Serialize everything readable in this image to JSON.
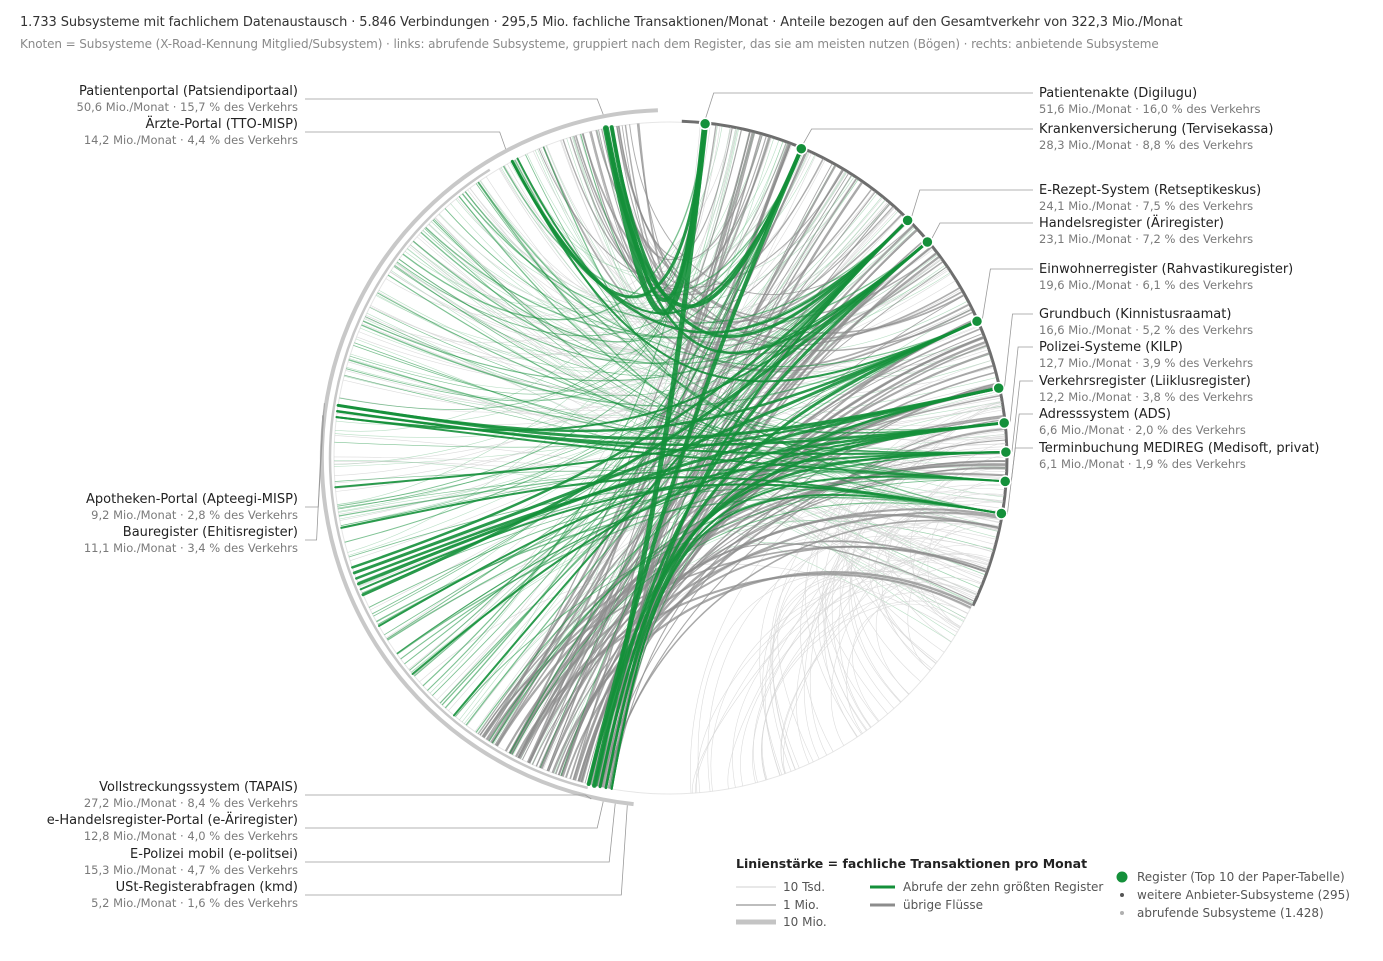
{
  "header": {
    "line1": "1.733 Subsysteme mit fachlichem Datenaustausch · 5.846 Verbindungen · 295,5 Mio. fachliche Transaktionen/Monat · Anteile bezogen auf den Gesamtverkehr von 322,3 Mio./Monat",
    "line2": "Knoten = Subsysteme (X-Road-Kennung Mitglied/Subsystem) · links: abrufende Subsysteme, gruppiert nach dem Register, das sie am meisten nutzen (Bögen) · rechts: anbietende Subsysteme"
  },
  "left_nodes": [
    {
      "name": "Patientenportal (Patsiendiportaal)",
      "value": "50,6 Mio./Monat · 15,7 % des Verkehrs"
    },
    {
      "name": "Ärzte-Portal (TTO-MISP)",
      "value": "14,2 Mio./Monat · 4,4 % des Verkehrs"
    },
    {
      "name": "Apotheken-Portal (Apteegi-MISP)",
      "value": "9,2 Mio./Monat · 2,8 % des Verkehrs"
    },
    {
      "name": "Bauregister (Ehitisregister)",
      "value": "11,1 Mio./Monat · 3,4 % des Verkehrs"
    },
    {
      "name": "Vollstreckungssystem (TAPAIS)",
      "value": "27,2 Mio./Monat · 8,4 % des Verkehrs"
    },
    {
      "name": "e-Handelsregister-Portal (e-Äriregister)",
      "value": "12,8 Mio./Monat · 4,0 % des Verkehrs"
    },
    {
      "name": "E-Polizei mobil (e-politsei)",
      "value": "15,3 Mio./Monat · 4,7 % des Verkehrs"
    },
    {
      "name": "USt-Registerabfragen (kmd)",
      "value": "5,2 Mio./Monat · 1,6 % des Verkehrs"
    }
  ],
  "right_nodes": [
    {
      "name": "Patientenakte (Digilugu)",
      "value": "51,6 Mio./Monat · 16,0 % des Verkehrs"
    },
    {
      "name": "Krankenversicherung (Tervisekassa)",
      "value": "28,3 Mio./Monat · 8,8 % des Verkehrs"
    },
    {
      "name": "E-Rezept-System (Retseptikeskus)",
      "value": "24,1 Mio./Monat · 7,5 % des Verkehrs"
    },
    {
      "name": "Handelsregister (Äriregister)",
      "value": "23,1 Mio./Monat · 7,2 % des Verkehrs"
    },
    {
      "name": "Einwohnerregister (Rahvastikuregister)",
      "value": "19,6 Mio./Monat · 6,1 % des Verkehrs"
    },
    {
      "name": "Grundbuch (Kinnistusraamat)",
      "value": "16,6 Mio./Monat · 5,2 % des Verkehrs"
    },
    {
      "name": "Polizei-Systeme (KILP)",
      "value": "12,7 Mio./Monat · 3,9 % des Verkehrs"
    },
    {
      "name": "Verkehrsregister (Liiklusregister)",
      "value": "12,2 Mio./Monat · 3,8 % des Verkehrs"
    },
    {
      "name": "Adresssystem (ADS)",
      "value": "6,6 Mio./Monat · 2,0 % des Verkehrs"
    },
    {
      "name": "Terminbuchung MEDIREG (Medisoft, privat)",
      "value": "6,1 Mio./Monat · 1,9 % des Verkehrs"
    }
  ],
  "legend": {
    "title": "Linienstärke = fachliche Transaktionen pro Monat",
    "widths": [
      "10 Tsd.",
      "1 Mio.",
      "10 Mio."
    ],
    "green_label": "Abrufe der zehn größten Register",
    "gray_label": "übrige Flüsse",
    "register_label": "Register (Top 10 der Paper-Tabelle)",
    "provider_label": "weitere Anbieter-Subsysteme (295)",
    "consumer_label": "abrufende Subsysteme (1.428)"
  },
  "colors": {
    "green": "#14903a",
    "gray": "#8c8c8c",
    "light": "#d2d2d2",
    "arc": "#c8c8c8",
    "provider_arc": "#6e6e6e"
  }
}
